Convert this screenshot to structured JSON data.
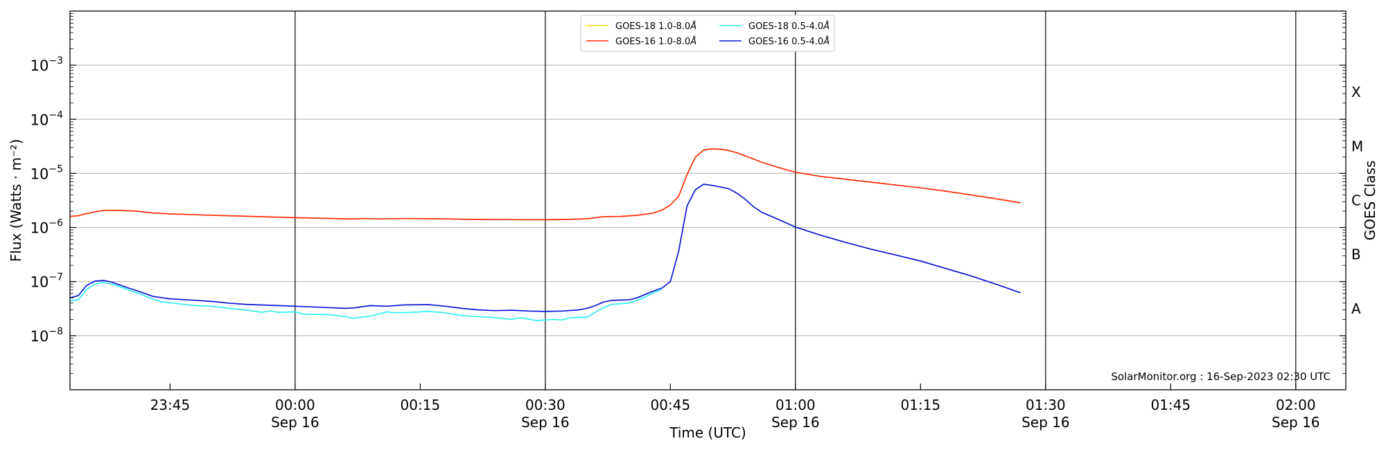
{
  "chart_data": {
    "type": "line",
    "xlabel": "Time (UTC)",
    "ylabel": "Flux (Watts · m⁻²)",
    "right_ylabel": "GOES Class",
    "yscale": "log",
    "ylim": [
      1e-09,
      0.01
    ],
    "xlim": [
      "2023-09-15 23:33:00",
      "2023-09-16 02:06:00"
    ],
    "grid": "horizontal at decades; vertical lines at half-hour marks",
    "legend_position": "top-center",
    "y_ticks": [
      {
        "value": 1e-08,
        "label": "10",
        "exp": "−8"
      },
      {
        "value": 1e-07,
        "label": "10",
        "exp": "−7"
      },
      {
        "value": 1e-06,
        "label": "10",
        "exp": "−6"
      },
      {
        "value": 1e-05,
        "label": "10",
        "exp": "−5"
      },
      {
        "value": 0.0001,
        "label": "10",
        "exp": "−4"
      },
      {
        "value": 0.001,
        "label": "10",
        "exp": "−3"
      }
    ],
    "x_ticks": [
      {
        "time": "2023-09-15 23:45",
        "label": "23:45",
        "sublabel": ""
      },
      {
        "time": "2023-09-16 00:00",
        "label": "00:00",
        "sublabel": "Sep 16"
      },
      {
        "time": "2023-09-16 00:15",
        "label": "00:15",
        "sublabel": ""
      },
      {
        "time": "2023-09-16 00:30",
        "label": "00:30",
        "sublabel": "Sep 16"
      },
      {
        "time": "2023-09-16 00:45",
        "label": "00:45",
        "sublabel": ""
      },
      {
        "time": "2023-09-16 01:00",
        "label": "01:00",
        "sublabel": "Sep 16"
      },
      {
        "time": "2023-09-16 01:15",
        "label": "01:15",
        "sublabel": ""
      },
      {
        "time": "2023-09-16 01:30",
        "label": "01:30",
        "sublabel": "Sep 16"
      },
      {
        "time": "2023-09-16 01:45",
        "label": "01:45",
        "sublabel": ""
      },
      {
        "time": "2023-09-16 02:00",
        "label": "02:00",
        "sublabel": "Sep 16"
      }
    ],
    "vlines": [
      "2023-09-16 00:00",
      "2023-09-16 00:30",
      "2023-09-16 01:00",
      "2023-09-16 01:30",
      "2023-09-16 02:00"
    ],
    "goes_classes": [
      {
        "label": "A",
        "value": 3.16e-08
      },
      {
        "label": "B",
        "value": 3.16e-07
      },
      {
        "label": "C",
        "value": 3.16e-06
      },
      {
        "label": "M",
        "value": 3.16e-05
      },
      {
        "label": "X",
        "value": 0.000316
      }
    ],
    "series": [
      {
        "name": "GOES-18 1.0-8.0",
        "color": "#ffd700",
        "points": []
      },
      {
        "name": "GOES-16 1.0-8.0",
        "color": "#ff2a00",
        "points": [
          [
            "2023-09-15 23:33",
            1.6e-06
          ],
          [
            "2023-09-15 23:34",
            1.65e-06
          ],
          [
            "2023-09-15 23:35",
            1.8e-06
          ],
          [
            "2023-09-15 23:36",
            1.95e-06
          ],
          [
            "2023-09-15 23:37",
            2.05e-06
          ],
          [
            "2023-09-15 23:38",
            2.08e-06
          ],
          [
            "2023-09-15 23:39",
            2.06e-06
          ],
          [
            "2023-09-15 23:40",
            2.03e-06
          ],
          [
            "2023-09-15 23:41",
            2e-06
          ],
          [
            "2023-09-15 23:42",
            1.92e-06
          ],
          [
            "2023-09-15 23:43",
            1.85e-06
          ],
          [
            "2023-09-15 23:45",
            1.78e-06
          ],
          [
            "2023-09-15 23:48",
            1.72e-06
          ],
          [
            "2023-09-15 23:52",
            1.65e-06
          ],
          [
            "2023-09-15 23:56",
            1.58e-06
          ],
          [
            "2023-09-16 00:00",
            1.52e-06
          ],
          [
            "2023-09-16 00:04",
            1.47e-06
          ],
          [
            "2023-09-16 00:07",
            1.43e-06
          ],
          [
            "2023-09-16 00:08",
            1.46e-06
          ],
          [
            "2023-09-16 00:10",
            1.44e-06
          ],
          [
            "2023-09-16 00:13",
            1.46e-06
          ],
          [
            "2023-09-16 00:17",
            1.45e-06
          ],
          [
            "2023-09-16 00:21",
            1.41e-06
          ],
          [
            "2023-09-16 00:25",
            1.4e-06
          ],
          [
            "2023-09-16 00:30",
            1.39e-06
          ],
          [
            "2023-09-16 00:33",
            1.41e-06
          ],
          [
            "2023-09-16 00:35",
            1.45e-06
          ],
          [
            "2023-09-16 00:36",
            1.52e-06
          ],
          [
            "2023-09-16 00:37",
            1.58e-06
          ],
          [
            "2023-09-16 00:39",
            1.6e-06
          ],
          [
            "2023-09-16 00:41",
            1.68e-06
          ],
          [
            "2023-09-16 00:43",
            1.85e-06
          ],
          [
            "2023-09-16 00:44",
            2.1e-06
          ],
          [
            "2023-09-16 00:45",
            2.6e-06
          ],
          [
            "2023-09-16 00:46",
            3.8e-06
          ],
          [
            "2023-09-16 00:47",
            9.5e-06
          ],
          [
            "2023-09-16 00:48",
            2e-05
          ],
          [
            "2023-09-16 00:49",
            2.7e-05
          ],
          [
            "2023-09-16 00:50",
            2.85e-05
          ],
          [
            "2023-09-16 00:51",
            2.8e-05
          ],
          [
            "2023-09-16 00:52",
            2.65e-05
          ],
          [
            "2023-09-16 00:53",
            2.4e-05
          ],
          [
            "2023-09-16 00:54",
            2.1e-05
          ],
          [
            "2023-09-16 00:56",
            1.6e-05
          ],
          [
            "2023-09-16 00:58",
            1.28e-05
          ],
          [
            "2023-09-16 01:00",
            1.05e-05
          ],
          [
            "2023-09-16 01:03",
            8.8e-06
          ],
          [
            "2023-09-16 01:06",
            7.8e-06
          ],
          [
            "2023-09-16 01:09",
            6.9e-06
          ],
          [
            "2023-09-16 01:12",
            6.1e-06
          ],
          [
            "2023-09-16 01:15",
            5.4e-06
          ],
          [
            "2023-09-16 01:18",
            4.7e-06
          ],
          [
            "2023-09-16 01:21",
            4e-06
          ],
          [
            "2023-09-16 01:24",
            3.4e-06
          ],
          [
            "2023-09-16 01:27",
            2.85e-06
          ]
        ]
      },
      {
        "name": "GOES-18 0.5-4.0",
        "color": "#2ef0f0",
        "points": [
          [
            "2023-09-15 23:33",
            4.4e-08
          ],
          [
            "2023-09-15 23:34",
            4.6e-08
          ],
          [
            "2023-09-15 23:35",
            7.2e-08
          ],
          [
            "2023-09-15 23:36",
            9e-08
          ],
          [
            "2023-09-15 23:37",
            9.6e-08
          ],
          [
            "2023-09-15 23:38",
            9e-08
          ],
          [
            "2023-09-15 23:39",
            8e-08
          ],
          [
            "2023-09-15 23:40",
            7e-08
          ],
          [
            "2023-09-15 23:41",
            6.2e-08
          ],
          [
            "2023-09-15 23:42",
            5.4e-08
          ],
          [
            "2023-09-15 23:43",
            4.7e-08
          ],
          [
            "2023-09-15 23:44",
            4.2e-08
          ],
          [
            "2023-09-15 23:46",
            3.9e-08
          ],
          [
            "2023-09-15 23:48",
            3.6e-08
          ],
          [
            "2023-09-15 23:50",
            3.5e-08
          ],
          [
            "2023-09-15 23:52",
            3.2e-08
          ],
          [
            "2023-09-15 23:54",
            3e-08
          ],
          [
            "2023-09-15 23:56",
            2.7e-08
          ],
          [
            "2023-09-15 23:57",
            2.85e-08
          ],
          [
            "2023-09-15 23:58",
            2.7e-08
          ],
          [
            "2023-09-16 00:00",
            2.75e-08
          ],
          [
            "2023-09-16 00:01",
            2.5e-08
          ],
          [
            "2023-09-16 00:04",
            2.45e-08
          ],
          [
            "2023-09-16 00:06",
            2.25e-08
          ],
          [
            "2023-09-16 00:07",
            2.1e-08
          ],
          [
            "2023-09-16 00:09",
            2.3e-08
          ],
          [
            "2023-09-16 00:11",
            2.75e-08
          ],
          [
            "2023-09-16 00:12",
            2.65e-08
          ],
          [
            "2023-09-16 00:14",
            2.7e-08
          ],
          [
            "2023-09-16 00:16",
            2.8e-08
          ],
          [
            "2023-09-16 00:18",
            2.65e-08
          ],
          [
            "2023-09-16 00:20",
            2.35e-08
          ],
          [
            "2023-09-16 00:22",
            2.25e-08
          ],
          [
            "2023-09-16 00:24",
            2.15e-08
          ],
          [
            "2023-09-16 00:26",
            2e-08
          ],
          [
            "2023-09-16 00:27",
            2.15e-08
          ],
          [
            "2023-09-16 00:29",
            1.9e-08
          ],
          [
            "2023-09-16 00:30",
            1.95e-08
          ],
          [
            "2023-09-16 00:31",
            2e-08
          ],
          [
            "2023-09-16 00:32",
            1.95e-08
          ],
          [
            "2023-09-16 00:33",
            2.15e-08
          ],
          [
            "2023-09-16 00:35",
            2.2e-08
          ],
          [
            "2023-09-16 00:36",
            2.7e-08
          ],
          [
            "2023-09-16 00:37",
            3.3e-08
          ],
          [
            "2023-09-16 00:38",
            3.8e-08
          ],
          [
            "2023-09-16 00:40",
            4e-08
          ],
          [
            "2023-09-16 00:41",
            4.5e-08
          ],
          [
            "2023-09-16 00:42",
            5.2e-08
          ],
          [
            "2023-09-16 00:43",
            6.2e-08
          ],
          [
            "2023-09-16 00:44",
            7.2e-08
          ]
        ]
      },
      {
        "name": "GOES-16 0.5-4.0",
        "color": "#0a14d8",
        "points": [
          [
            "2023-09-15 23:33",
            5e-08
          ],
          [
            "2023-09-15 23:34",
            5.5e-08
          ],
          [
            "2023-09-15 23:35",
            8.5e-08
          ],
          [
            "2023-09-15 23:36",
            1.02e-07
          ],
          [
            "2023-09-15 23:37",
            1.05e-07
          ],
          [
            "2023-09-15 23:38",
            9.8e-08
          ],
          [
            "2023-09-15 23:39",
            8.6e-08
          ],
          [
            "2023-09-15 23:40",
            7.6e-08
          ],
          [
            "2023-09-15 23:41",
            6.8e-08
          ],
          [
            "2023-09-15 23:42",
            6e-08
          ],
          [
            "2023-09-15 23:43",
            5.3e-08
          ],
          [
            "2023-09-15 23:45",
            4.8e-08
          ],
          [
            "2023-09-15 23:48",
            4.5e-08
          ],
          [
            "2023-09-15 23:50",
            4.3e-08
          ],
          [
            "2023-09-15 23:52",
            4e-08
          ],
          [
            "2023-09-15 23:54",
            3.8e-08
          ],
          [
            "2023-09-15 23:56",
            3.7e-08
          ],
          [
            "2023-09-15 23:58",
            3.6e-08
          ],
          [
            "2023-09-16 00:00",
            3.5e-08
          ],
          [
            "2023-09-16 00:02",
            3.4e-08
          ],
          [
            "2023-09-16 00:04",
            3.3e-08
          ],
          [
            "2023-09-16 00:06",
            3.2e-08
          ],
          [
            "2023-09-16 00:07",
            3.25e-08
          ],
          [
            "2023-09-16 00:09",
            3.6e-08
          ],
          [
            "2023-09-16 00:11",
            3.5e-08
          ],
          [
            "2023-09-16 00:13",
            3.7e-08
          ],
          [
            "2023-09-16 00:16",
            3.75e-08
          ],
          [
            "2023-09-16 00:18",
            3.5e-08
          ],
          [
            "2023-09-16 00:20",
            3.2e-08
          ],
          [
            "2023-09-16 00:22",
            3e-08
          ],
          [
            "2023-09-16 00:24",
            2.9e-08
          ],
          [
            "2023-09-16 00:26",
            2.95e-08
          ],
          [
            "2023-09-16 00:28",
            2.85e-08
          ],
          [
            "2023-09-16 00:30",
            2.8e-08
          ],
          [
            "2023-09-16 00:32",
            2.85e-08
          ],
          [
            "2023-09-16 00:34",
            3e-08
          ],
          [
            "2023-09-16 00:35",
            3.2e-08
          ],
          [
            "2023-09-16 00:36",
            3.6e-08
          ],
          [
            "2023-09-16 00:37",
            4.2e-08
          ],
          [
            "2023-09-16 00:38",
            4.5e-08
          ],
          [
            "2023-09-16 00:40",
            4.6e-08
          ],
          [
            "2023-09-16 00:41",
            5e-08
          ],
          [
            "2023-09-16 00:42",
            5.8e-08
          ],
          [
            "2023-09-16 00:43",
            6.7e-08
          ],
          [
            "2023-09-16 00:44",
            7.6e-08
          ],
          [
            "2023-09-16 00:45",
            1e-07
          ],
          [
            "2023-09-16 00:46",
            3.7e-07
          ],
          [
            "2023-09-16 00:47",
            2.5e-06
          ],
          [
            "2023-09-16 00:48",
            5e-06
          ],
          [
            "2023-09-16 00:49",
            6.3e-06
          ],
          [
            "2023-09-16 00:50",
            6e-06
          ],
          [
            "2023-09-16 00:51",
            5.6e-06
          ],
          [
            "2023-09-16 00:52",
            5.2e-06
          ],
          [
            "2023-09-16 00:53",
            4.3e-06
          ],
          [
            "2023-09-16 00:54",
            3.3e-06
          ],
          [
            "2023-09-16 00:55",
            2.4e-06
          ],
          [
            "2023-09-16 00:56",
            1.9e-06
          ],
          [
            "2023-09-16 00:58",
            1.4e-06
          ],
          [
            "2023-09-16 01:00",
            1.02e-06
          ],
          [
            "2023-09-16 01:03",
            7.2e-07
          ],
          [
            "2023-09-16 01:06",
            5.3e-07
          ],
          [
            "2023-09-16 01:09",
            4e-07
          ],
          [
            "2023-09-16 01:12",
            3.1e-07
          ],
          [
            "2023-09-16 01:15",
            2.4e-07
          ],
          [
            "2023-09-16 01:18",
            1.75e-07
          ],
          [
            "2023-09-16 01:21",
            1.28e-07
          ],
          [
            "2023-09-16 01:24",
            9e-08
          ],
          [
            "2023-09-16 01:27",
            6.2e-08
          ]
        ]
      }
    ]
  },
  "legend": {
    "items": [
      {
        "text": "GOES-18 1.0-8.0",
        "unit": "Å",
        "color": "#ffd700"
      },
      {
        "text": "GOES-18 0.5-4.0",
        "unit": "Å",
        "color": "#2ef0f0"
      },
      {
        "text": "GOES-16 1.0-8.0",
        "unit": "Å",
        "color": "#ff2a00"
      },
      {
        "text": "GOES-16 0.5-4.0",
        "unit": "Å",
        "color": "#0a14d8"
      }
    ]
  },
  "footer": {
    "source_text": "SolarMonitor.org : 16-Sep-2023 02:30 UTC"
  },
  "colors": {
    "axis": "#000000",
    "grid": "#b0b0b0",
    "vline": "#000000"
  }
}
